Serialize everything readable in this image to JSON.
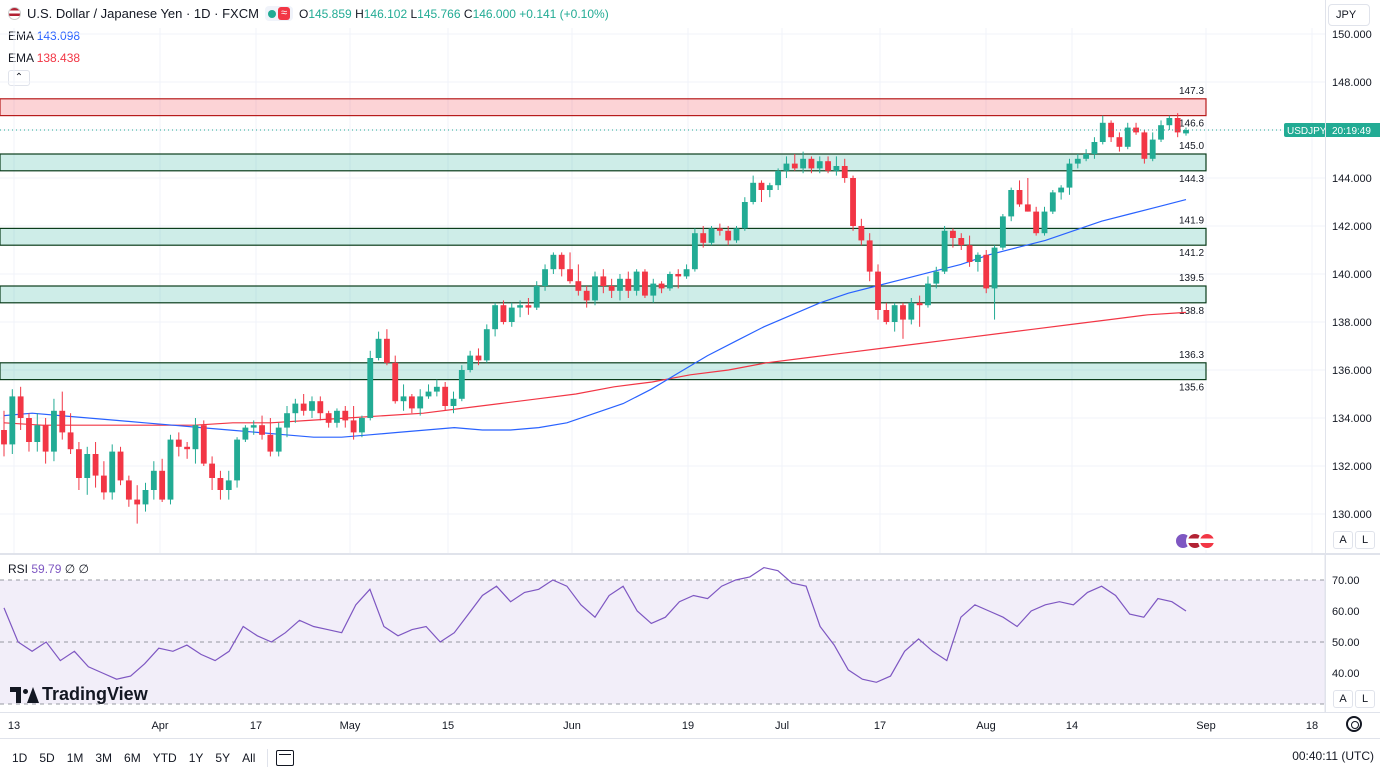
{
  "header": {
    "title": "U.S. Dollar / Japanese Yen · 1D · FXCM",
    "ohlc": {
      "o_label": "O",
      "o": "145.859",
      "h_label": "H",
      "h": "146.102",
      "l_label": "L",
      "l": "145.766",
      "c_label": "C",
      "c": "146.000",
      "change": "+0.141 (+0.10%)"
    },
    "currency": "JPY"
  },
  "indicators": {
    "ema1": {
      "label": "EMA",
      "value": "143.098",
      "color": "#2962ff"
    },
    "ema2": {
      "label": "EMA",
      "value": "138.438",
      "color": "#f23645"
    }
  },
  "price_axis": {
    "ticks": [
      "150.000",
      "148.000",
      "146.000",
      "144.000",
      "142.000",
      "140.000",
      "138.000",
      "136.000",
      "134.000",
      "132.000",
      "130.000"
    ],
    "symbol_badge": "USDJPY",
    "countdown": "20:19:49"
  },
  "rsi": {
    "label": "RSI",
    "value": "59.79",
    "extra": "∅ ∅",
    "ticks": [
      "70.00",
      "60.00",
      "50.00",
      "40.00"
    ]
  },
  "time_axis": {
    "labels": [
      "13",
      "Apr",
      "17",
      "May",
      "15",
      "Jun",
      "19",
      "Jul",
      "17",
      "Aug",
      "14",
      "Sep",
      "18"
    ]
  },
  "timeframes": [
    "1D",
    "5D",
    "1M",
    "3M",
    "6M",
    "YTD",
    "1Y",
    "5Y",
    "All"
  ],
  "clock": "00:40:11 (UTC)",
  "buttons": {
    "auto": "A",
    "log": "L"
  },
  "logo": "TradingView",
  "colors": {
    "up": "#22ab94",
    "down": "#f23645",
    "ema_fast": "#2962ff",
    "ema_slow": "#f23645",
    "rsi": "#7e57c2"
  },
  "chart_data": {
    "type": "candlestick",
    "symbol": "USDJPY",
    "interval": "1D",
    "ylim": [
      129,
      151
    ],
    "zones": [
      {
        "type": "resistance",
        "low": 146.6,
        "high": 147.3,
        "color": "#f23645",
        "labels": [
          "147.3",
          "146.6"
        ]
      },
      {
        "type": "support",
        "low": 144.3,
        "high": 145.0,
        "color": "#22ab94",
        "labels": [
          "145.0",
          "144.3"
        ]
      },
      {
        "type": "support",
        "low": 141.2,
        "high": 141.9,
        "color": "#22ab94",
        "labels": [
          "141.9",
          "141.2"
        ]
      },
      {
        "type": "support",
        "low": 138.8,
        "high": 139.5,
        "color": "#22ab94",
        "labels": [
          "139.5",
          "138.8"
        ]
      },
      {
        "type": "support",
        "low": 135.6,
        "high": 136.3,
        "color": "#22ab94",
        "labels": [
          "136.3",
          "135.6"
        ]
      }
    ],
    "candles": [
      [
        133.5,
        134.3,
        132.4,
        132.9
      ],
      [
        132.9,
        135.2,
        132.5,
        134.9
      ],
      [
        134.9,
        135.3,
        133.5,
        134.0
      ],
      [
        134.0,
        134.2,
        132.6,
        133.0
      ],
      [
        133.0,
        134.2,
        132.6,
        133.7
      ],
      [
        133.7,
        134.0,
        132.1,
        132.6
      ],
      [
        132.6,
        134.8,
        132.2,
        134.3
      ],
      [
        134.3,
        135.1,
        133.1,
        133.4
      ],
      [
        133.4,
        134.2,
        132.5,
        132.7
      ],
      [
        132.7,
        133.0,
        131.0,
        131.5
      ],
      [
        131.5,
        132.8,
        130.8,
        132.5
      ],
      [
        132.5,
        133.0,
        131.1,
        131.6
      ],
      [
        131.6,
        132.2,
        130.6,
        130.9
      ],
      [
        130.9,
        132.9,
        130.6,
        132.6
      ],
      [
        132.6,
        132.8,
        131.2,
        131.4
      ],
      [
        131.4,
        131.6,
        130.3,
        130.6
      ],
      [
        130.6,
        131.2,
        129.6,
        130.4
      ],
      [
        130.4,
        131.3,
        130.1,
        131.0
      ],
      [
        131.0,
        132.2,
        130.6,
        131.8
      ],
      [
        131.8,
        132.3,
        130.5,
        130.6
      ],
      [
        130.6,
        133.3,
        130.4,
        133.1
      ],
      [
        133.1,
        133.4,
        132.4,
        132.8
      ],
      [
        132.8,
        133.0,
        132.3,
        132.7
      ],
      [
        132.7,
        134.0,
        132.1,
        133.7
      ],
      [
        133.7,
        133.9,
        132.0,
        132.1
      ],
      [
        132.1,
        132.4,
        131.0,
        131.5
      ],
      [
        131.5,
        131.8,
        130.6,
        131.0
      ],
      [
        131.0,
        131.8,
        130.6,
        131.4
      ],
      [
        131.4,
        133.2,
        131.1,
        133.1
      ],
      [
        133.1,
        133.7,
        133.0,
        133.6
      ],
      [
        133.6,
        133.9,
        133.3,
        133.7
      ],
      [
        133.7,
        134.1,
        133.1,
        133.3
      ],
      [
        133.3,
        134.0,
        132.4,
        132.6
      ],
      [
        132.6,
        133.8,
        132.4,
        133.6
      ],
      [
        133.6,
        134.5,
        133.2,
        134.2
      ],
      [
        134.2,
        134.8,
        133.8,
        134.6
      ],
      [
        134.6,
        135.0,
        134.1,
        134.3
      ],
      [
        134.3,
        134.9,
        134.0,
        134.7
      ],
      [
        134.7,
        134.9,
        133.9,
        134.2
      ],
      [
        134.2,
        134.3,
        133.6,
        133.8
      ],
      [
        133.8,
        134.4,
        133.6,
        134.3
      ],
      [
        134.3,
        134.5,
        133.6,
        133.9
      ],
      [
        133.9,
        134.5,
        133.1,
        133.4
      ],
      [
        133.4,
        134.1,
        133.2,
        134.0
      ],
      [
        134.0,
        136.8,
        133.9,
        136.5
      ],
      [
        136.5,
        137.6,
        136.4,
        137.3
      ],
      [
        137.3,
        137.7,
        136.2,
        136.3
      ],
      [
        136.3,
        136.6,
        134.6,
        134.7
      ],
      [
        134.7,
        135.4,
        134.3,
        134.9
      ],
      [
        134.9,
        135.0,
        134.2,
        134.4
      ],
      [
        134.4,
        135.2,
        134.1,
        134.9
      ],
      [
        134.9,
        135.4,
        134.8,
        135.1
      ],
      [
        135.1,
        135.6,
        134.9,
        135.3
      ],
      [
        135.3,
        135.5,
        134.3,
        134.5
      ],
      [
        134.5,
        135.1,
        134.2,
        134.8
      ],
      [
        134.8,
        136.2,
        134.7,
        136.0
      ],
      [
        136.0,
        136.8,
        135.9,
        136.6
      ],
      [
        136.6,
        136.9,
        136.2,
        136.4
      ],
      [
        136.4,
        137.9,
        136.3,
        137.7
      ],
      [
        137.7,
        138.8,
        137.4,
        138.7
      ],
      [
        138.7,
        138.9,
        137.9,
        138.0
      ],
      [
        138.0,
        138.8,
        137.8,
        138.6
      ],
      [
        138.6,
        138.9,
        138.2,
        138.7
      ],
      [
        138.7,
        139.0,
        138.3,
        138.6
      ],
      [
        138.6,
        139.7,
        138.5,
        139.5
      ],
      [
        139.5,
        140.4,
        139.3,
        140.2
      ],
      [
        140.2,
        140.9,
        140.0,
        140.8
      ],
      [
        140.8,
        140.9,
        139.9,
        140.2
      ],
      [
        140.2,
        140.9,
        139.6,
        139.7
      ],
      [
        139.7,
        140.4,
        139.1,
        139.3
      ],
      [
        139.3,
        139.5,
        138.6,
        138.9
      ],
      [
        138.9,
        140.1,
        138.7,
        139.9
      ],
      [
        139.9,
        140.2,
        139.2,
        139.5
      ],
      [
        139.5,
        139.8,
        139.0,
        139.3
      ],
      [
        139.3,
        140.0,
        138.9,
        139.8
      ],
      [
        139.8,
        140.1,
        139.0,
        139.3
      ],
      [
        139.3,
        140.2,
        139.1,
        140.1
      ],
      [
        140.1,
        140.2,
        139.0,
        139.1
      ],
      [
        139.1,
        139.8,
        138.8,
        139.6
      ],
      [
        139.6,
        139.7,
        139.2,
        139.4
      ],
      [
        139.4,
        140.1,
        139.3,
        140.0
      ],
      [
        140.0,
        140.2,
        139.4,
        139.9
      ],
      [
        139.9,
        140.4,
        139.8,
        140.2
      ],
      [
        140.2,
        141.9,
        140.1,
        141.7
      ],
      [
        141.7,
        142.0,
        141.1,
        141.3
      ],
      [
        141.3,
        142.0,
        141.2,
        141.9
      ],
      [
        141.9,
        142.1,
        141.6,
        141.8
      ],
      [
        141.8,
        142.0,
        141.2,
        141.4
      ],
      [
        141.4,
        142.0,
        141.3,
        141.9
      ],
      [
        141.9,
        143.2,
        141.8,
        143.0
      ],
      [
        143.0,
        144.1,
        142.9,
        143.8
      ],
      [
        143.8,
        143.9,
        143.0,
        143.5
      ],
      [
        143.5,
        143.8,
        143.2,
        143.7
      ],
      [
        143.7,
        144.4,
        143.5,
        144.3
      ],
      [
        144.3,
        144.9,
        144.0,
        144.6
      ],
      [
        144.6,
        145.0,
        144.3,
        144.4
      ],
      [
        144.4,
        145.1,
        144.2,
        144.8
      ],
      [
        144.8,
        144.9,
        144.2,
        144.4
      ],
      [
        144.4,
        144.9,
        144.2,
        144.7
      ],
      [
        144.7,
        144.9,
        144.2,
        144.3
      ],
      [
        144.3,
        144.9,
        144.1,
        144.5
      ],
      [
        144.5,
        144.8,
        143.8,
        144.0
      ],
      [
        144.0,
        144.1,
        141.8,
        142.0
      ],
      [
        142.0,
        142.3,
        141.2,
        141.4
      ],
      [
        141.4,
        141.7,
        139.7,
        140.1
      ],
      [
        140.1,
        140.4,
        138.1,
        138.5
      ],
      [
        138.5,
        138.8,
        137.9,
        138.0
      ],
      [
        138.0,
        138.8,
        137.6,
        138.7
      ],
      [
        138.7,
        138.8,
        137.3,
        138.1
      ],
      [
        138.1,
        139.0,
        137.9,
        138.8
      ],
      [
        138.8,
        139.1,
        137.8,
        138.7
      ],
      [
        138.7,
        139.9,
        138.6,
        139.6
      ],
      [
        139.6,
        140.3,
        139.4,
        140.1
      ],
      [
        140.1,
        142.0,
        140.0,
        141.8
      ],
      [
        141.8,
        141.9,
        141.1,
        141.5
      ],
      [
        141.5,
        141.7,
        141.0,
        141.2
      ],
      [
        141.2,
        141.6,
        140.3,
        140.5
      ],
      [
        140.5,
        140.9,
        140.1,
        140.8
      ],
      [
        140.8,
        141.0,
        139.2,
        139.4
      ],
      [
        139.4,
        141.2,
        138.1,
        141.1
      ],
      [
        141.1,
        142.5,
        141.0,
        142.4
      ],
      [
        142.4,
        143.6,
        142.2,
        143.5
      ],
      [
        143.5,
        143.9,
        142.8,
        142.9
      ],
      [
        142.9,
        144.0,
        142.6,
        142.6
      ],
      [
        142.6,
        142.8,
        141.6,
        141.7
      ],
      [
        141.7,
        142.8,
        141.6,
        142.6
      ],
      [
        142.6,
        143.5,
        142.5,
        143.4
      ],
      [
        143.4,
        143.7,
        143.1,
        143.6
      ],
      [
        143.6,
        144.8,
        143.3,
        144.6
      ],
      [
        144.6,
        145.0,
        144.4,
        144.8
      ],
      [
        144.8,
        145.2,
        144.7,
        145.0
      ],
      [
        145.0,
        145.7,
        144.8,
        145.5
      ],
      [
        145.5,
        146.6,
        145.4,
        146.3
      ],
      [
        146.3,
        146.4,
        145.5,
        145.7
      ],
      [
        145.7,
        145.9,
        145.1,
        145.3
      ],
      [
        145.3,
        146.3,
        145.2,
        146.1
      ],
      [
        146.1,
        146.3,
        145.8,
        145.9
      ],
      [
        145.9,
        146.0,
        144.6,
        144.8
      ],
      [
        144.8,
        145.9,
        144.7,
        145.6
      ],
      [
        145.6,
        146.4,
        145.5,
        146.2
      ],
      [
        146.2,
        146.6,
        146.0,
        146.5
      ],
      [
        146.5,
        146.7,
        145.7,
        145.9
      ],
      [
        145.859,
        146.102,
        145.766,
        146.0
      ]
    ],
    "ema_fast": [
      134.1,
      134.2,
      134.1,
      134.0,
      133.9,
      133.8,
      133.7,
      133.6,
      133.5,
      133.4,
      133.3,
      133.2,
      133.2,
      133.3,
      133.4,
      133.5,
      133.6,
      133.5,
      133.5,
      133.6,
      133.8,
      134.2,
      134.6,
      135.2,
      135.9,
      136.6,
      137.2,
      137.8,
      138.3,
      138.8,
      139.2,
      139.5,
      139.8,
      140.1,
      140.4,
      140.8,
      141.1,
      141.4,
      141.8,
      142.2,
      142.5,
      142.8,
      143.1
    ],
    "ema_slow": [
      133.8,
      133.7,
      133.7,
      133.7,
      133.7,
      133.7,
      133.8,
      133.8,
      133.9,
      134.0,
      134.1,
      134.2,
      134.4,
      134.6,
      134.8,
      135.0,
      135.3,
      135.5,
      135.8,
      136.0,
      136.3,
      136.5,
      136.7,
      136.9,
      137.1,
      137.3,
      137.5,
      137.7,
      137.9,
      138.1,
      138.3,
      138.4
    ],
    "rsi_values": [
      61,
      50,
      47,
      50,
      44,
      47,
      42,
      40,
      38,
      39,
      43,
      48,
      47,
      49,
      46,
      44,
      47,
      55,
      52,
      50,
      53,
      57,
      55,
      54,
      53,
      62,
      67,
      55,
      52,
      54,
      55,
      50,
      53,
      59,
      65,
      68,
      63,
      66,
      67,
      70,
      68,
      62,
      58,
      65,
      68,
      60,
      56,
      58,
      63,
      65,
      64,
      68,
      70,
      71,
      74,
      73,
      69,
      68,
      55,
      49,
      41,
      38,
      37,
      39,
      47,
      51,
      47,
      44,
      58,
      62,
      60,
      58,
      55,
      60,
      62,
      63,
      62,
      66,
      68,
      65,
      59,
      58,
      64,
      63,
      60
    ]
  }
}
